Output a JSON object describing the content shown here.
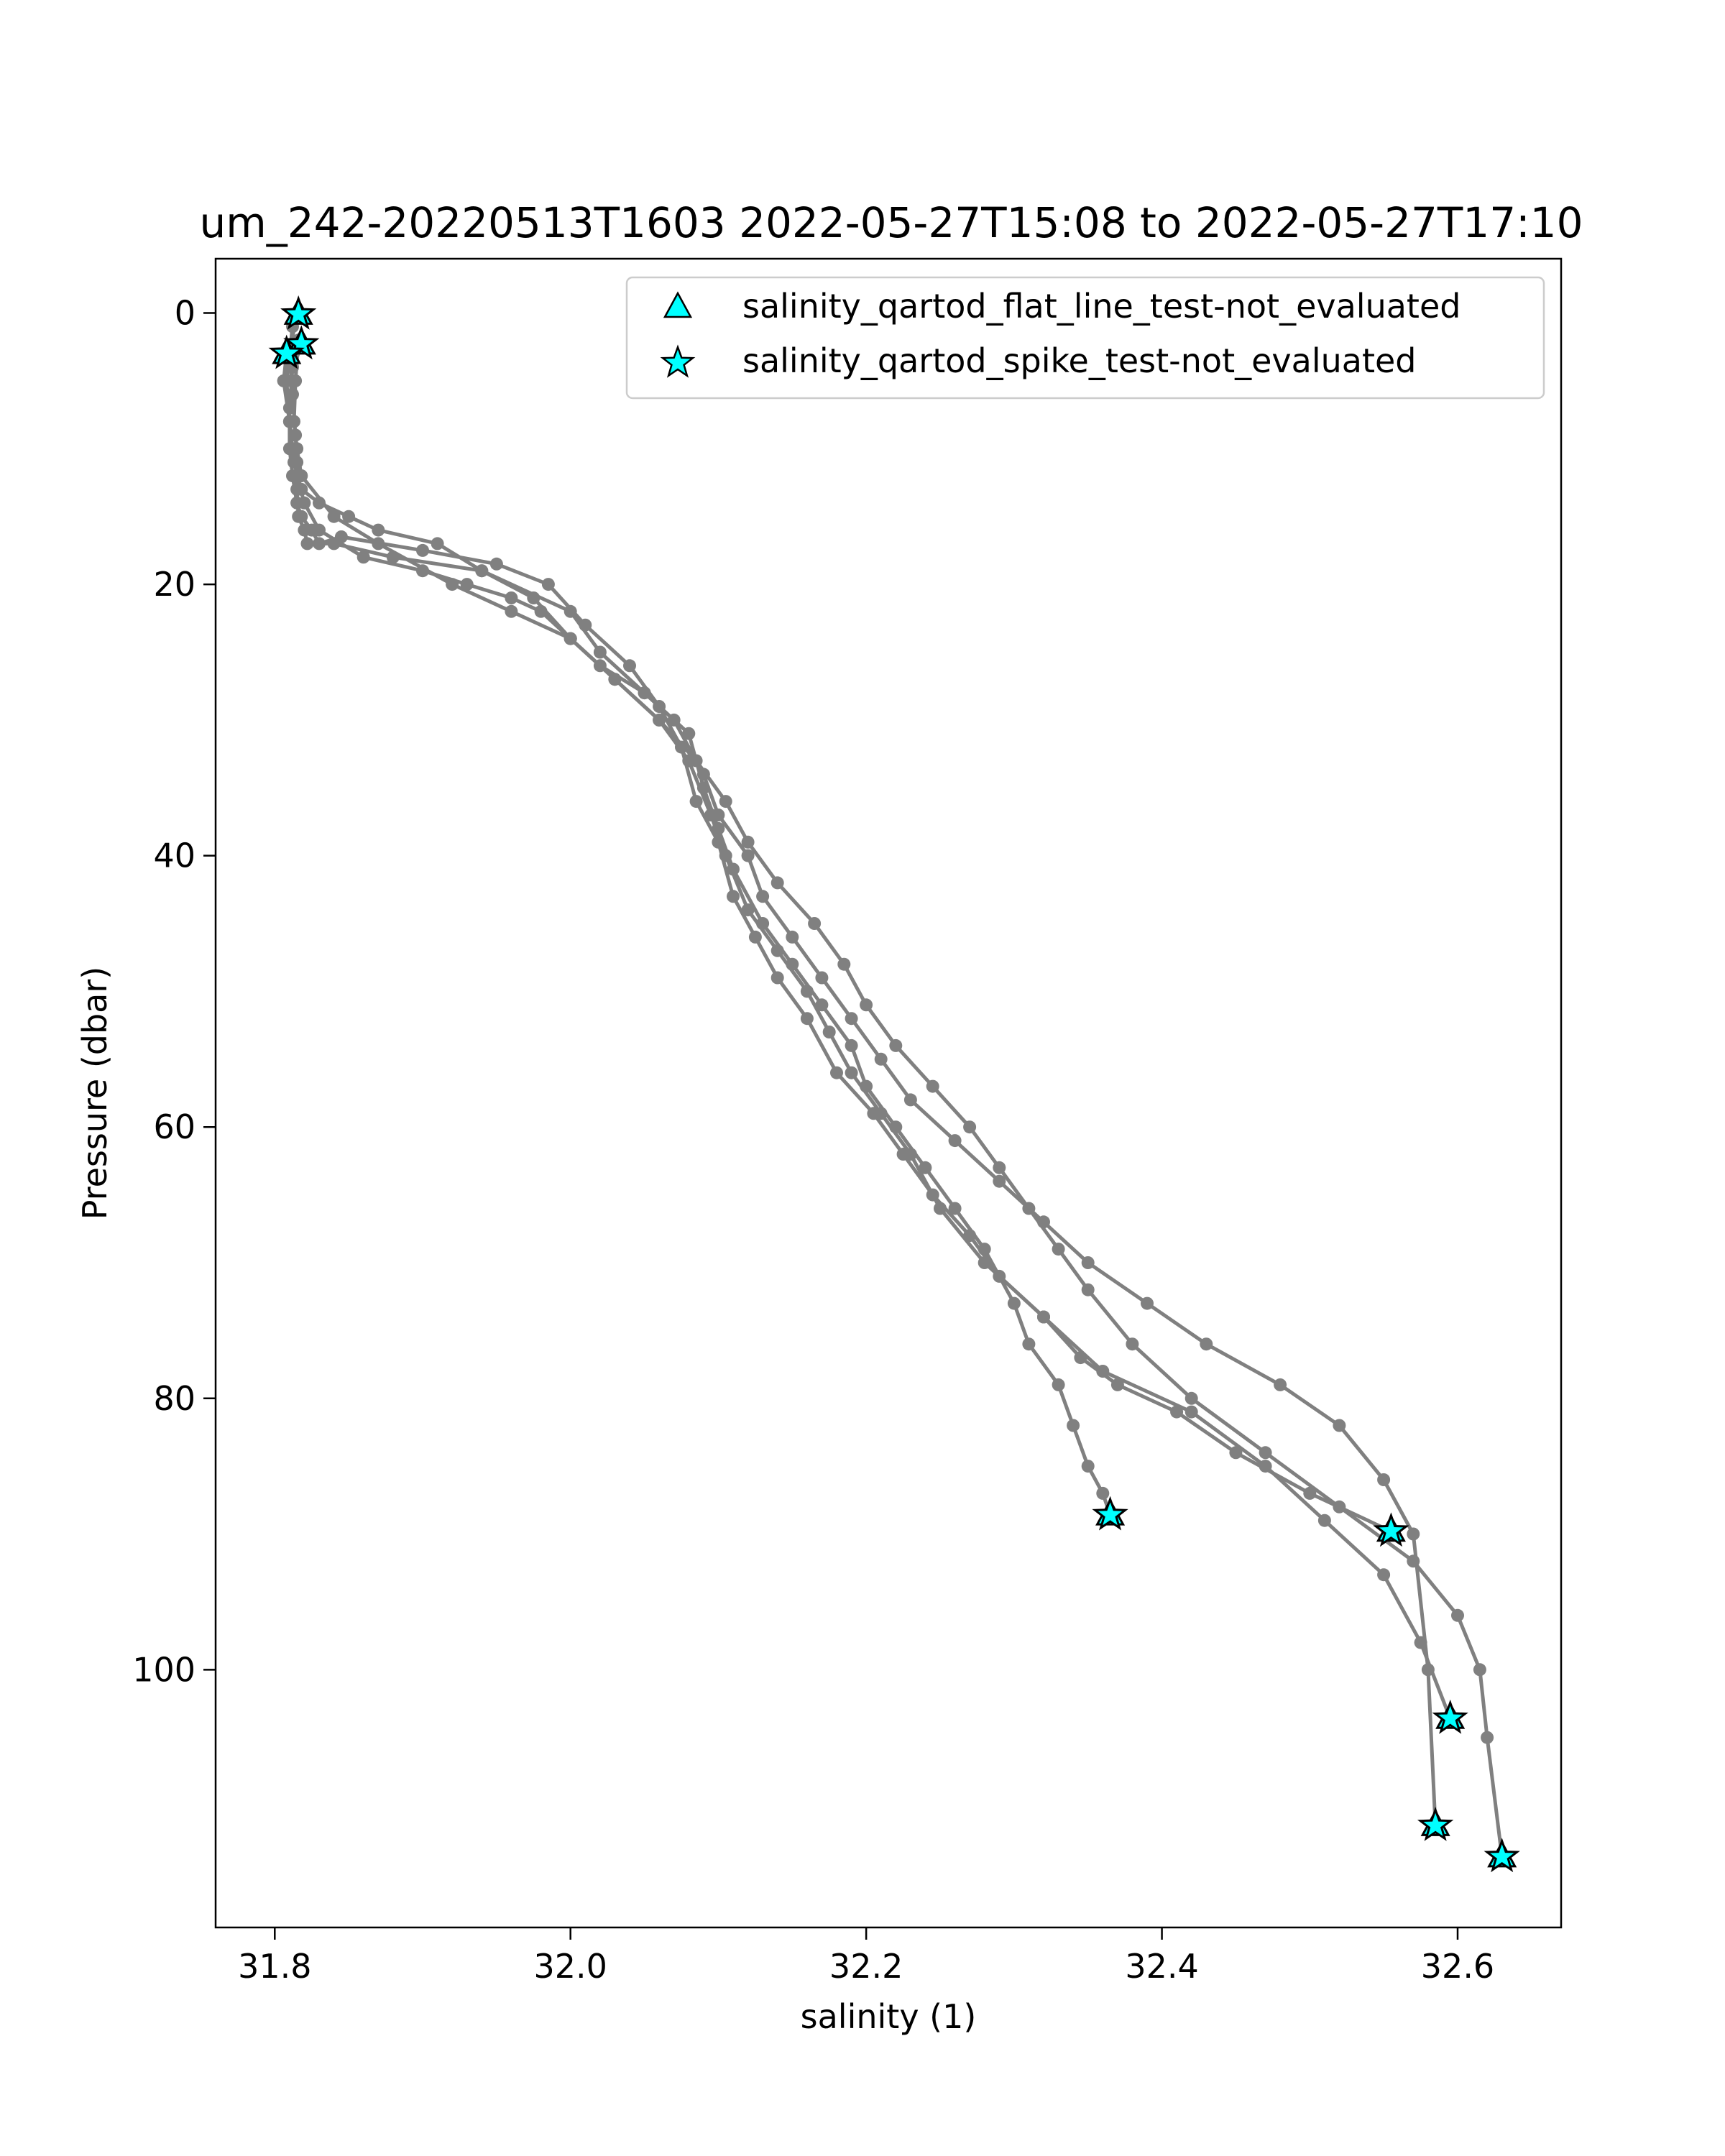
{
  "chart_data": {
    "type": "scatter",
    "title": "um_242-20220513T1603 2022-05-27T15:08 to 2022-05-27T17:10",
    "xlabel": "salinity (1)",
    "ylabel": "Pressure (dbar)",
    "xlim": [
      31.76,
      32.67
    ],
    "ylim": [
      119,
      -4
    ],
    "y_inverted": true,
    "grid": false,
    "legend_position": "top-right",
    "xticks": [
      {
        "value": 31.8,
        "label": "31.8"
      },
      {
        "value": 32.0,
        "label": "32.0"
      },
      {
        "value": 32.2,
        "label": "32.2"
      },
      {
        "value": 32.4,
        "label": "32.4"
      },
      {
        "value": 32.6,
        "label": "32.6"
      }
    ],
    "yticks": [
      {
        "value": 0,
        "label": "0"
      },
      {
        "value": 20,
        "label": "20"
      },
      {
        "value": 40,
        "label": "40"
      },
      {
        "value": 60,
        "label": "60"
      },
      {
        "value": 80,
        "label": "80"
      },
      {
        "value": 100,
        "label": "100"
      }
    ],
    "colors": {
      "profile_line": "#808080",
      "flag_fill": "#00ffff",
      "flag_edge": "#000000"
    },
    "profiles": [
      {
        "x": [
          31.815,
          31.81,
          31.812,
          31.814,
          31.815,
          31.815,
          31.816,
          31.82,
          31.822,
          31.84,
          31.88,
          31.94,
          32.0,
          32.02,
          32.05,
          32.08,
          32.09,
          32.1,
          32.11,
          32.13,
          32.15,
          32.17,
          32.19,
          32.2,
          32.22,
          32.24,
          32.26,
          32.28,
          32.3,
          32.31,
          32.33,
          32.34,
          32.35,
          32.36,
          32.365
        ],
        "y": [
          0,
          3,
          6,
          9,
          11,
          13,
          15,
          16,
          17,
          17,
          18,
          19,
          22,
          25,
          28,
          31,
          35,
          38,
          41,
          45,
          48,
          51,
          54,
          57,
          60,
          63,
          66,
          69,
          73,
          76,
          79,
          82,
          85,
          87,
          88.6
        ]
      },
      {
        "x": [
          31.818,
          31.812,
          31.81,
          31.81,
          31.812,
          31.815,
          31.818,
          31.825,
          31.83,
          31.845,
          31.9,
          31.95,
          31.985,
          32.01,
          32.04,
          32.06,
          32.075,
          32.085,
          32.1,
          32.11,
          32.125,
          32.14,
          32.16,
          32.18,
          32.205,
          32.225,
          32.245,
          32.27,
          32.29,
          32.32,
          32.345,
          32.37,
          32.41,
          32.45,
          32.5,
          32.555
        ],
        "y": [
          2.5,
          4,
          7,
          10,
          12,
          14,
          15,
          16,
          17,
          16.5,
          17.5,
          18.5,
          20,
          23,
          26,
          29,
          32,
          36,
          39,
          43,
          46,
          49,
          52,
          56,
          59,
          62,
          65,
          68,
          71,
          74,
          77,
          79,
          81,
          84,
          87,
          89.8
        ]
      },
      {
        "x": [
          31.808,
          31.806,
          31.81,
          31.813,
          31.818,
          31.83,
          31.85,
          31.87,
          31.91,
          31.94,
          31.975,
          32.0,
          32.03,
          32.06,
          32.08,
          32.095,
          32.105,
          32.12,
          32.14,
          32.16,
          32.175,
          32.19,
          32.21,
          32.23,
          32.25,
          32.28,
          32.32,
          32.36,
          32.42,
          32.47,
          32.51,
          32.55,
          32.575,
          32.595
        ],
        "y": [
          3,
          5,
          8,
          11,
          13,
          14,
          15,
          16,
          17,
          19,
          21,
          24,
          27,
          30,
          33,
          37,
          40,
          44,
          47,
          50,
          53,
          56,
          59,
          62,
          66,
          70,
          74,
          78,
          81,
          85,
          89,
          93,
          98,
          103.6
        ]
      },
      {
        "x": [
          31.816,
          31.814,
          31.813,
          31.815,
          31.818,
          31.84,
          31.87,
          31.92,
          31.96,
          32.0,
          32.02,
          32.05,
          32.07,
          32.09,
          32.1,
          32.12,
          32.13,
          32.15,
          32.17,
          32.19,
          32.21,
          32.23,
          32.26,
          32.29,
          32.32,
          32.35,
          32.39,
          32.43,
          32.48,
          32.52,
          32.55,
          32.57,
          32.58,
          32.585
        ],
        "y": [
          2,
          5,
          8,
          10,
          12,
          15,
          17,
          20,
          22,
          24,
          26,
          28,
          30,
          34,
          37,
          40,
          43,
          46,
          49,
          52,
          55,
          58,
          61,
          64,
          67,
          70,
          73,
          76,
          79,
          82,
          86,
          90,
          100,
          111.5
        ]
      },
      {
        "x": [
          31.812,
          31.81,
          31.808,
          31.81,
          31.812,
          31.815,
          31.82,
          31.83,
          31.86,
          31.9,
          31.93,
          31.96,
          31.98,
          32.0,
          32.03,
          32.06,
          32.085,
          32.105,
          32.12,
          32.14,
          32.165,
          32.185,
          32.2,
          32.22,
          32.245,
          32.27,
          32.29,
          32.31,
          32.33,
          32.35,
          32.38,
          32.42,
          32.47,
          32.52,
          32.57,
          32.6,
          32.615,
          32.62,
          32.63
        ],
        "y": [
          1,
          3,
          5,
          8,
          10,
          12,
          14,
          16,
          18,
          19,
          20,
          21,
          22,
          24,
          27,
          30,
          33,
          36,
          39,
          42,
          45,
          48,
          51,
          54,
          57,
          60,
          63,
          66,
          69,
          72,
          76,
          80,
          84,
          88,
          92,
          96,
          100,
          105,
          113.8
        ]
      }
    ],
    "flagged_points": {
      "flat_line": {
        "label": "salinity_qartod_flat_line_test-not_evaluated",
        "marker": "triangle",
        "points": [
          {
            "x": 31.816,
            "y": 0.1
          },
          {
            "x": 31.818,
            "y": 2.3
          },
          {
            "x": 31.808,
            "y": 3.0
          },
          {
            "x": 32.365,
            "y": 88.6
          },
          {
            "x": 32.555,
            "y": 89.8
          },
          {
            "x": 32.595,
            "y": 103.6
          },
          {
            "x": 32.585,
            "y": 111.5
          },
          {
            "x": 32.63,
            "y": 113.8
          }
        ]
      },
      "spike": {
        "label": "salinity_qartod_spike_test-not_evaluated",
        "marker": "star",
        "points": [
          {
            "x": 31.816,
            "y": 0.1
          },
          {
            "x": 31.818,
            "y": 2.3
          },
          {
            "x": 31.808,
            "y": 3.0
          },
          {
            "x": 32.365,
            "y": 88.6
          },
          {
            "x": 32.555,
            "y": 89.8
          },
          {
            "x": 32.595,
            "y": 103.6
          },
          {
            "x": 32.585,
            "y": 111.5
          },
          {
            "x": 32.63,
            "y": 113.8
          }
        ]
      }
    }
  }
}
